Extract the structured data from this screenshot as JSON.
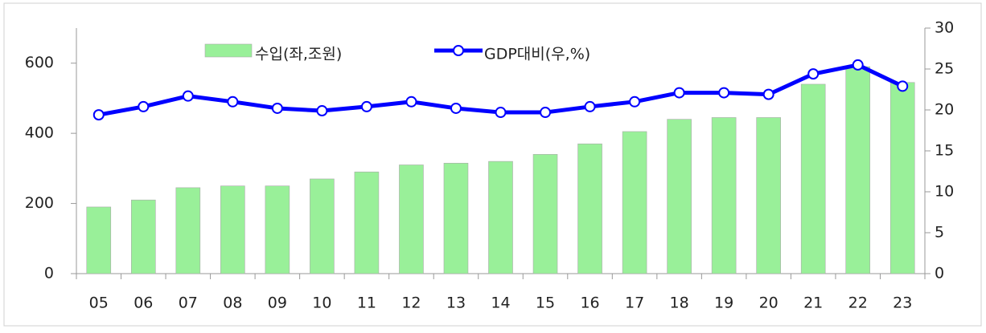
{
  "chart_data": {
    "type": "bar",
    "categories": [
      "05",
      "06",
      "07",
      "08",
      "09",
      "10",
      "11",
      "12",
      "13",
      "14",
      "15",
      "16",
      "17",
      "18",
      "19",
      "20",
      "21",
      "22",
      "23"
    ],
    "series": [
      {
        "name": "수입(좌,조원)",
        "type": "bar",
        "color": "#99f099",
        "values": [
          190,
          210,
          245,
          250,
          250,
          270,
          290,
          310,
          315,
          320,
          340,
          370,
          405,
          440,
          445,
          445,
          540,
          590,
          545
        ]
      },
      {
        "name": "GDP대비(우,%)",
        "type": "line",
        "color": "#0000ff",
        "axis": "y2",
        "values": [
          19.4,
          20.4,
          21.7,
          21.0,
          20.2,
          19.9,
          20.4,
          21.0,
          20.2,
          19.7,
          19.7,
          20.4,
          21.0,
          22.1,
          22.1,
          21.9,
          24.4,
          25.5,
          22.9
        ]
      }
    ],
    "ylim": [
      0,
      700
    ],
    "yticks": [
      0,
      200,
      400,
      600
    ],
    "y2lim": [
      0,
      30
    ],
    "y2ticks": [
      0,
      5,
      10,
      15,
      20,
      25,
      30
    ],
    "legend": "top",
    "grid": false
  }
}
